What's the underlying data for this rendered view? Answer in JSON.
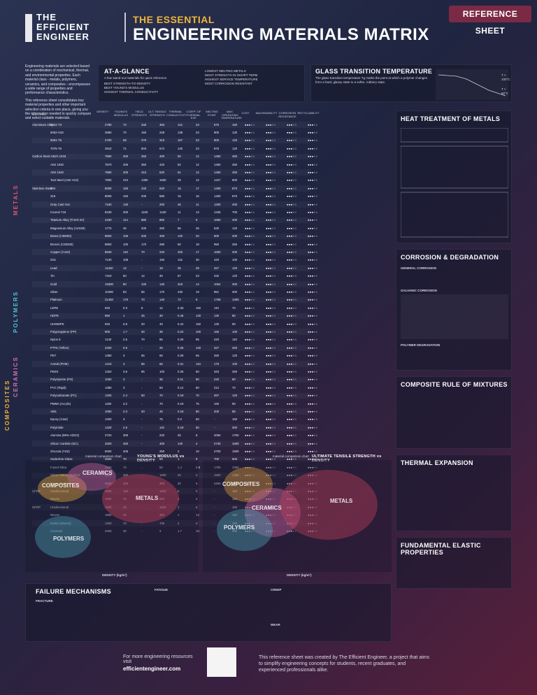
{
  "header": {
    "logo_lines": [
      "THE",
      "EFFICIENT",
      "ENGINEER"
    ],
    "kicker": "THE ESSENTIAL",
    "title": "ENGINEERING MATERIALS MATRIX",
    "badge": "REFERENCE SHEET"
  },
  "intro": {
    "p1": "Engineering materials are selected based on a combination of mechanical, thermal, and environmental properties. Each material class - metals, polymers, ceramics, and composites - encompasses a wide range of properties and performance characteristics.",
    "p2": "This reference sheet consolidates key material properties and other important selection criteria in one place, giving you the information needed to quickly compare and select suitable materials."
  },
  "at_a_glance": {
    "title": "AT-A-GLANCE",
    "subtitle": "A few stand-out materials for quick reference.",
    "col1": [
      "BEST STRENGTH-TO-DENSITY",
      "BEST YOUNG'S MODULUS",
      "HIGHEST THERMAL CONDUCTIVITY"
    ],
    "col2": [
      "LOWEST MELTING METALS",
      "MOST STRENGTH IN SHORT TERM",
      "HIGHEST SERVICE TEMPERATURE",
      "MOST CORROSION RESISTANT"
    ]
  },
  "glass_transition": {
    "title": "GLASS TRANSITION TEMPERATURE",
    "text": "The glass transition temperature Tg marks the point at which a polymer changes from a hard, glassy state to a softer, rubbery state.",
    "labels": [
      "T > 100°C",
      "T < 50°C"
    ]
  },
  "table": {
    "headers": [
      "MATERIAL",
      "DENSITY",
      "YOUNG'S MODULUS",
      "YIELD STRENGTH",
      "ULT. TENSILE STRENGTH",
      "THERMAL CONDUCTIVITY",
      "COEFF. OF THERMAL EXP.",
      "MELTING POINT",
      "MAX. OPERATING TEMPERATURE",
      "COST",
      "MACHINABILITY",
      "CORROSION RESISTANCE",
      "RECYCLABILITY"
    ],
    "units": [
      "kg/m³",
      "GPa",
      "MPa",
      "MPa",
      "W/m·K",
      "µm/m·K",
      "°C",
      "°C"
    ],
    "groups": [
      "METALS",
      "POLYMERS",
      "CERAMICS",
      "COMPOSITES"
    ],
    "rows": [
      {
        "g": "Aluminium Alloy",
        "n": "2024-T3",
        "v": [
          "2780",
          "73",
          "345",
          "483",
          "121",
          "23",
          "675",
          "150"
        ]
      },
      {
        "g": "",
        "n": "5052-H32",
        "v": [
          "2680",
          "70",
          "193",
          "228",
          "138",
          "23",
          "900",
          "130"
        ]
      },
      {
        "g": "",
        "n": "6061-T6",
        "v": [
          "2700",
          "69",
          "276",
          "310",
          "167",
          "23",
          "900",
          "120"
        ]
      },
      {
        "g": "",
        "n": "7075-T6",
        "v": [
          "2810",
          "71",
          "503",
          "572",
          "130",
          "23",
          "875",
          "120"
        ]
      },
      {
        "g": "Carbon Steel",
        "n": "A36/A 1018",
        "v": [
          "7850",
          "200",
          "250",
          "400",
          "50",
          "12",
          "1450",
          "450"
        ]
      },
      {
        "g": "",
        "n": "AISI 1020",
        "v": [
          "7870",
          "205",
          "350",
          "420",
          "52",
          "12",
          "1450",
          "450"
        ]
      },
      {
        "g": "",
        "n": "AISI 1040",
        "v": [
          "7850",
          "200",
          "415",
          "620",
          "51",
          "12",
          "1450",
          "450"
        ]
      },
      {
        "g": "",
        "n": "Tool Steel (AISI H13)",
        "v": [
          "7800",
          "210",
          "1350",
          "1650",
          "29",
          "12",
          "1427",
          "600"
        ]
      },
      {
        "g": "Stainless Steel",
        "n": "304",
        "v": [
          "8000",
          "193",
          "240",
          "620",
          "16",
          "17",
          "1400",
          "870"
        ]
      },
      {
        "g": "",
        "n": "316",
        "v": [
          "8000",
          "193",
          "205",
          "580",
          "15",
          "16",
          "1400",
          "870"
        ]
      },
      {
        "g": "",
        "n": "Gray Cast Iron",
        "v": [
          "7150",
          "130",
          "-",
          "200",
          "46",
          "11",
          "1200",
          "400"
        ]
      },
      {
        "g": "",
        "n": "Inconel 718",
        "v": [
          "8190",
          "200",
          "1100",
          "1240",
          "11",
          "13",
          "1336",
          "700"
        ]
      },
      {
        "g": "",
        "n": "Titanium Alloy (Ti-6Al-4V)",
        "v": [
          "4430",
          "114",
          "880",
          "950",
          "7",
          "9",
          "1660",
          "400"
        ]
      },
      {
        "g": "",
        "n": "Magnesium Alloy (AZ31B)",
        "v": [
          "1770",
          "45",
          "200",
          "260",
          "96",
          "26",
          "630",
          "120"
        ]
      },
      {
        "g": "",
        "n": "Brass (C36000)",
        "v": [
          "8500",
          "105",
          "200",
          "400",
          "120",
          "20",
          "900",
          "200"
        ]
      },
      {
        "g": "",
        "n": "Bronze (C93200)",
        "v": [
          "8800",
          "100",
          "170",
          "280",
          "60",
          "18",
          "950",
          "260"
        ]
      },
      {
        "g": "",
        "n": "Copper (C110)",
        "v": [
          "8940",
          "110",
          "70",
          "220",
          "400",
          "17",
          "1083",
          "200"
        ]
      },
      {
        "g": "",
        "n": "Zinc",
        "v": [
          "7130",
          "108",
          "-",
          "150",
          "116",
          "30",
          "420",
          "100"
        ]
      },
      {
        "g": "",
        "n": "Lead",
        "v": [
          "11340",
          "14",
          "-",
          "18",
          "35",
          "29",
          "327",
          "120"
        ]
      },
      {
        "g": "",
        "n": "Tin",
        "v": [
          "7310",
          "50",
          "12",
          "30",
          "67",
          "23",
          "232",
          "120"
        ]
      },
      {
        "g": "",
        "n": "Gold",
        "v": [
          "19300",
          "80",
          "100",
          "140",
          "318",
          "14",
          "1064",
          "300"
        ]
      },
      {
        "g": "",
        "n": "Silver",
        "v": [
          "10490",
          "83",
          "55",
          "170",
          "430",
          "19",
          "961",
          "300"
        ]
      },
      {
        "g": "",
        "n": "Platinum",
        "v": [
          "21450",
          "170",
          "70",
          "140",
          "72",
          "9",
          "1768",
          "1000"
        ]
      },
      {
        "g": "",
        "n": "LDPE",
        "v": [
          "920",
          "0.3",
          "8",
          "12",
          "0.33",
          "150",
          "110",
          "70"
        ]
      },
      {
        "g": "",
        "n": "HDPE",
        "v": [
          "950",
          "1",
          "25",
          "30",
          "0.45",
          "130",
          "130",
          "80"
        ]
      },
      {
        "g": "",
        "n": "UHMWPE",
        "v": [
          "940",
          "0.8",
          "20",
          "40",
          "0.42",
          "160",
          "130",
          "90"
        ]
      },
      {
        "g": "",
        "n": "Polypropylene (PP)",
        "v": [
          "900",
          "1.7",
          "30",
          "35",
          "0.22",
          "100",
          "160",
          "100"
        ]
      },
      {
        "g": "",
        "n": "Nylon 6",
        "v": [
          "1140",
          "2.5",
          "70",
          "85",
          "0.25",
          "95",
          "220",
          "110"
        ]
      },
      {
        "g": "",
        "n": "PTFE (Teflon)",
        "v": [
          "2200",
          "0.5",
          "-",
          "25",
          "0.25",
          "120",
          "327",
          "260"
        ]
      },
      {
        "g": "",
        "n": "PET",
        "v": [
          "1380",
          "3",
          "55",
          "65",
          "0.29",
          "65",
          "260",
          "120"
        ]
      },
      {
        "g": "",
        "n": "Acetal (POM)",
        "v": [
          "1410",
          "3",
          "65",
          "65",
          "0.31",
          "110",
          "175",
          "100"
        ]
      },
      {
        "g": "",
        "n": "PEEK",
        "v": [
          "1320",
          "3.6",
          "95",
          "100",
          "0.25",
          "50",
          "343",
          "250"
        ]
      },
      {
        "g": "",
        "n": "Polystyrene (PS)",
        "v": [
          "1050",
          "3",
          "-",
          "35",
          "0.11",
          "80",
          "240",
          "80"
        ]
      },
      {
        "g": "",
        "n": "PVC (Rigid)",
        "v": [
          "1380",
          "3",
          "-",
          "50",
          "0.14",
          "80",
          "212",
          "70"
        ]
      },
      {
        "g": "",
        "n": "Polycarbonate (PC)",
        "v": [
          "1200",
          "2.4",
          "60",
          "70",
          "0.19",
          "70",
          "267",
          "120"
        ]
      },
      {
        "g": "",
        "n": "PMMA (Acrylic)",
        "v": [
          "1180",
          "3.2",
          "-",
          "70",
          "0.19",
          "75",
          "160",
          "90"
        ]
      },
      {
        "g": "",
        "n": "ABS",
        "v": [
          "1050",
          "2.3",
          "40",
          "45",
          "0.18",
          "80",
          "200",
          "85"
        ]
      },
      {
        "g": "",
        "n": "Epoxy (Cast)",
        "v": [
          "1200",
          "3",
          "-",
          "75",
          "0.2",
          "60",
          "-",
          "150"
        ]
      },
      {
        "g": "",
        "n": "Polyimide",
        "v": [
          "1420",
          "2.5",
          "-",
          "110",
          "0.19",
          "50",
          "-",
          "300"
        ]
      },
      {
        "g": "",
        "n": "Alumina (99% Al2O3)",
        "v": [
          "3720",
          "300",
          "-",
          "220",
          "25",
          "8",
          "2050",
          "1700"
        ]
      },
      {
        "g": "",
        "n": "Silicon Carbide (SiC)",
        "v": [
          "3200",
          "450",
          "-",
          "400",
          "140",
          "4",
          "2730",
          "1600"
        ]
      },
      {
        "g": "",
        "n": "Zirconia (YSZ)",
        "v": [
          "6000",
          "205",
          "-",
          "250",
          "2",
          "10",
          "2700",
          "1500"
        ]
      },
      {
        "g": "",
        "n": "Soda-lime Glass",
        "v": [
          "2500",
          "70",
          "-",
          "50",
          "1",
          "9",
          "700",
          "500"
        ]
      },
      {
        "g": "",
        "n": "Fused Silica",
        "v": [
          "2200",
          "73",
          "-",
          "50",
          "1.4",
          "0.5",
          "1700",
          "1000"
        ]
      },
      {
        "g": "",
        "n": "Silicon Nitride (Si3N4)",
        "v": [
          "3200",
          "300",
          "-",
          "1000",
          "25",
          "3",
          "1900",
          "1300"
        ]
      },
      {
        "g": "",
        "n": "Boron Carbide",
        "v": [
          "2520",
          "450",
          "-",
          "300",
          "30",
          "5",
          "2450",
          "1000"
        ]
      },
      {
        "g": "CFRP",
        "n": "Unidirectional",
        "v": [
          "1600",
          "180",
          "-",
          "1800",
          "5",
          "0",
          "-",
          "150"
        ]
      },
      {
        "g": "",
        "n": "Woven",
        "v": [
          "1600",
          "70",
          "-",
          "600",
          "3",
          "3",
          "-",
          "150"
        ]
      },
      {
        "g": "GFRP",
        "n": "Unidirectional",
        "v": [
          "1900",
          "45",
          "-",
          "1100",
          "2",
          "6",
          "-",
          "150"
        ]
      },
      {
        "g": "",
        "n": "Woven",
        "v": [
          "1850",
          "25",
          "-",
          "350",
          "1",
          "12",
          "-",
          "150"
        ]
      },
      {
        "g": "",
        "n": "Kevlar (Woven)",
        "v": [
          "1400",
          "70",
          "-",
          "700",
          "2",
          "0",
          "-",
          "150"
        ]
      },
      {
        "g": "",
        "n": "Concrete",
        "v": [
          "2400",
          "30",
          "-",
          "3",
          "1.7",
          "10",
          "-",
          "600"
        ]
      }
    ]
  },
  "right": {
    "heat_treatment": "HEAT TREATMENT OF METALS",
    "corrosion": "CORROSION & DEGRADATION",
    "corrosion_sub": [
      "GENERAL CORROSION",
      "GALVANIC CORROSION",
      "POLYMER DEGRADATION"
    ],
    "composite_rule": "COMPOSITE RULE OF MIXTURES",
    "thermal_expansion": "THERMAL EXPANSION",
    "elastic": "FUNDAMENTAL ELASTIC PROPERTIES"
  },
  "charts": {
    "left_title": "YOUNG'S MODULUS vs DENSITY",
    "right_title": "ULTIMATE TENSILE STRENGTH vs DENSITY",
    "left_tag": "material comparison chart",
    "right_tag": "material comparison chart",
    "xlabel": "DENSITY (kg/m³)",
    "left_ylabel": "YOUNG'S MODULUS (GPa)",
    "right_ylabel": "ULTIMATE TENSILE STRENGTH (MPa)",
    "classes": [
      "METALS",
      "CERAMICS",
      "COMPOSITES",
      "POLYMERS"
    ]
  },
  "bottom": {
    "failure": "FAILURE MECHANISMS",
    "fatigue": "FATIGUE",
    "creep": "CREEP",
    "wear": "WEAR",
    "fracture": "FRACTURE"
  },
  "footer": {
    "left": "For more engineering resources visit",
    "url": "efficientengineer.com",
    "right": "This reference sheet was created by The Efficient Engineer, a project that aims to simplify engineering concepts for students, recent graduates, and experienced professionals alike."
  },
  "colors": {
    "accent": "#f2b53a",
    "metals": "#c9405a",
    "polymers": "#4ea7b8",
    "ceramics": "#c0609a",
    "composites": "#e3a13a"
  }
}
